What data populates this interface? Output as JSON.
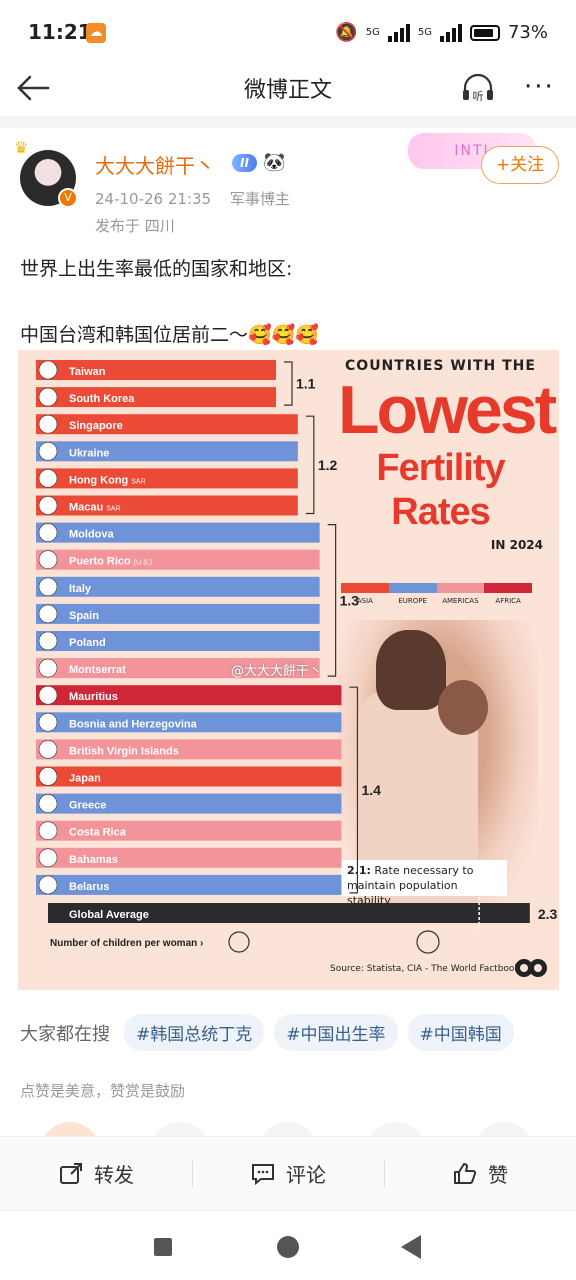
{
  "status_bar": {
    "time": "11:21",
    "signal1": "5G",
    "signal2": "5G",
    "battery": "73%"
  },
  "nav": {
    "title": "微博正文",
    "listen_label": "听"
  },
  "post": {
    "username": "大大大餅干丶",
    "level_badge": "II",
    "decoration_text": "INTJ",
    "follow_label": "+关注",
    "timestamp": "24-10-26 21:35",
    "category": "军事博主",
    "location": "发布于 四川",
    "text_line1": "世界上出生率最低的国家和地区:",
    "text_line2": "中国台湾和韩国位居前二～🥰🥰🥰"
  },
  "infographic": {
    "title_top": "COUNTRIES WITH THE",
    "title_big": "Lowest",
    "title_mid": "Fertility Rates",
    "title_year": "IN 2024",
    "legend": [
      {
        "label": "ASIA",
        "color": "#ea4a36"
      },
      {
        "label": "EUROPE",
        "color": "#6f93d8"
      },
      {
        "label": "AMERICAS",
        "color": "#f3949a"
      },
      {
        "label": "AFRICA",
        "color": "#cf2638"
      }
    ],
    "rate_note_bold": "2.1:",
    "rate_note": "Rate necessary to maintain population stability",
    "source": "Source: Statista,  CIA - The World Factbook",
    "watermark": "@大大大餅干丶",
    "x_axis_label": "Number of children per woman ›"
  },
  "chart_data": {
    "type": "bar",
    "title": "Countries With The Lowest Fertility Rates In 2024",
    "xlabel": "Number of children per woman",
    "orientation": "horizontal",
    "groups": [
      {
        "label": "1.1",
        "value": 1.1
      },
      {
        "label": "1.2",
        "value": 1.2
      },
      {
        "label": "1.3",
        "value": 1.3
      },
      {
        "label": "1.4",
        "value": 1.4
      }
    ],
    "rows": [
      {
        "name": "Taiwan",
        "value": 1.1,
        "region": "ASIA"
      },
      {
        "name": "South Korea",
        "value": 1.1,
        "region": "ASIA"
      },
      {
        "name": "Singapore",
        "value": 1.2,
        "region": "ASIA"
      },
      {
        "name": "Ukraine",
        "value": 1.2,
        "region": "EUROPE"
      },
      {
        "name": "Hong Kong",
        "suffix": "SAR",
        "value": 1.2,
        "region": "ASIA"
      },
      {
        "name": "Macau",
        "suffix": "SAR",
        "value": 1.2,
        "region": "ASIA"
      },
      {
        "name": "Moldova",
        "value": 1.3,
        "region": "EUROPE"
      },
      {
        "name": "Puerto Rico",
        "suffix": "(U.S.)",
        "value": 1.3,
        "region": "AMERICAS"
      },
      {
        "name": "Italy",
        "value": 1.3,
        "region": "EUROPE"
      },
      {
        "name": "Spain",
        "value": 1.3,
        "region": "EUROPE"
      },
      {
        "name": "Poland",
        "value": 1.3,
        "region": "EUROPE"
      },
      {
        "name": "Montserrat",
        "value": 1.3,
        "region": "AMERICAS"
      },
      {
        "name": "Mauritius",
        "value": 1.4,
        "region": "AFRICA"
      },
      {
        "name": "Bosnia and Herzegovina",
        "value": 1.4,
        "region": "EUROPE"
      },
      {
        "name": "British Virgin Islands",
        "value": 1.4,
        "region": "AMERICAS"
      },
      {
        "name": "Japan",
        "value": 1.4,
        "region": "ASIA"
      },
      {
        "name": "Greece",
        "value": 1.4,
        "region": "EUROPE"
      },
      {
        "name": "Costa Rica",
        "value": 1.4,
        "region": "AMERICAS"
      },
      {
        "name": "Bahamas",
        "value": 1.4,
        "region": "AMERICAS"
      },
      {
        "name": "Belarus",
        "value": 1.4,
        "region": "EUROPE"
      }
    ],
    "global_average": {
      "name": "Global Average",
      "value": 2.3
    },
    "replacement_rate": 2.1
  },
  "search": {
    "label": "大家都在搜",
    "tags": [
      "#韩国总统丁克",
      "#中国出生率",
      "#中国韩国"
    ]
  },
  "tip": "点赞是美意，赞赏是鼓励",
  "actions": {
    "repost": "转发",
    "comment": "评论",
    "like": "赞"
  }
}
